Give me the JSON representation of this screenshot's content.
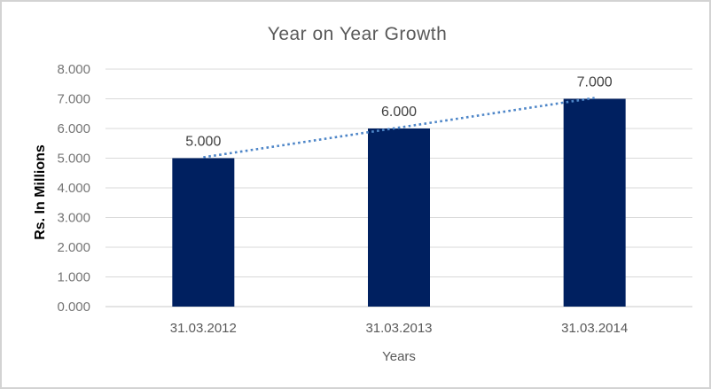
{
  "chart_data": {
    "type": "bar",
    "title": "Year on Year Growth",
    "xlabel": "Years",
    "ylabel": "Rs. In Millions",
    "categories": [
      "31.03.2012",
      "31.03.2013",
      "31.03.2014"
    ],
    "values": [
      5,
      6,
      7
    ],
    "data_labels": [
      "5.000",
      "6.000",
      "7.000"
    ],
    "y_ticks": [
      0,
      1,
      2,
      3,
      4,
      5,
      6,
      7,
      8
    ],
    "y_tick_labels": [
      "0.000",
      "1.000",
      "2.000",
      "3.000",
      "4.000",
      "5.000",
      "6.000",
      "7.000",
      "8.000"
    ],
    "ylim": [
      0,
      8
    ],
    "grid": true,
    "legend": "none",
    "trendline": {
      "style": "dotted",
      "start_value": 5,
      "end_value": 7
    },
    "colors": {
      "bar": "#002060",
      "trendline": "#4e86c8",
      "gridline": "#d9d9d9",
      "axis_line": "#c9c9c9",
      "title_text": "#595959",
      "y_tick_text": "#757575",
      "x_tick_text": "#595959",
      "data_label_text": "#404040",
      "axis_title_text": "#000000",
      "border": "#d3d3d3",
      "background": "#ffffff"
    }
  }
}
